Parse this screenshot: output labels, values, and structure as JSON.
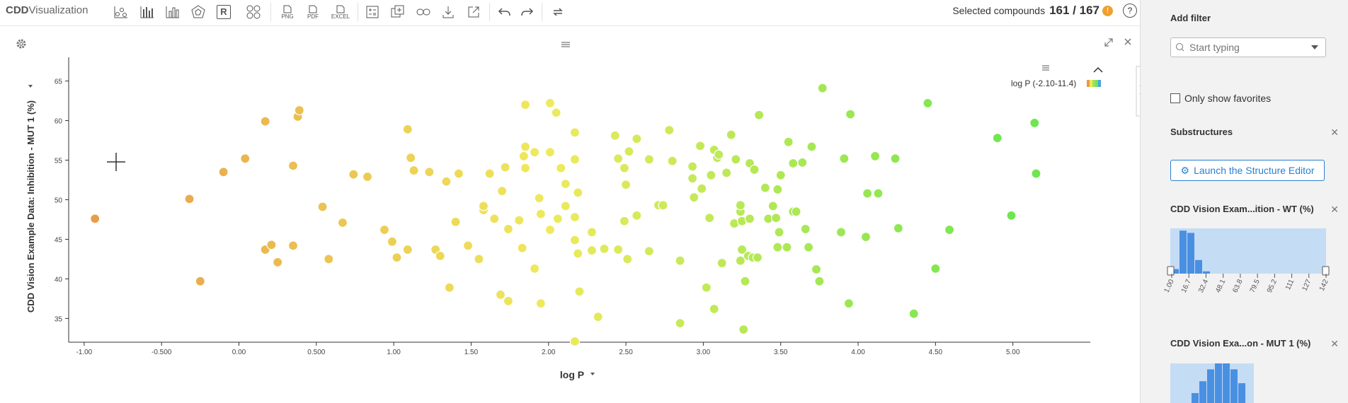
{
  "app": {
    "logo_main": "CDD",
    "logo_sub": "Visualization"
  },
  "toolbar": {
    "icons": [
      "scatter-plot-icon",
      "histogram-icon",
      "bar-chart-icon",
      "radar-chart-icon",
      "r-script-icon",
      "cluster-icon",
      "png-export-icon",
      "pdf-export-icon",
      "excel-export-icon",
      "calculator-icon",
      "duplicate-icon",
      "link-icon",
      "download-icon",
      "open-external-icon",
      "undo-icon",
      "redo-icon",
      "refresh-icon"
    ],
    "r_label": "R",
    "png_label": "PNG",
    "pdf_label": "PDF",
    "excel_label": "EXCEL"
  },
  "selection": {
    "label": "Selected compounds",
    "count": "161 / 167",
    "warn": "!",
    "help": "?"
  },
  "legend": {
    "label": "log P (-2.10-11.4)"
  },
  "chart_data": {
    "type": "scatter",
    "xlabel": "log P",
    "ylabel": "CDD Vision Example Data: Inhibition - MUT 1 (%)",
    "xlim": [
      -1.1,
      5.5
    ],
    "ylim": [
      32,
      68
    ],
    "x_ticks": [
      "-1.00",
      "-0.500",
      "0.00",
      "0.500",
      "1.00",
      "1.50",
      "2.00",
      "2.50",
      "3.00",
      "3.50",
      "4.00",
      "4.50",
      "5.00"
    ],
    "x_tick_values": [
      -1,
      -0.5,
      0,
      0.5,
      1,
      1.5,
      2,
      2.5,
      3,
      3.5,
      4,
      4.5,
      5
    ],
    "y_ticks": [
      "35",
      "40",
      "45",
      "50",
      "55",
      "60",
      "65"
    ],
    "y_tick_values": [
      35,
      40,
      45,
      50,
      55,
      60,
      65
    ],
    "color_scale": {
      "min": -2.1,
      "max": 11.4,
      "low": "#e89a48",
      "mid": "#eeea5c",
      "high": "#6ee64e"
    },
    "points": [
      [
        -0.93,
        47.6
      ],
      [
        -0.32,
        50.1
      ],
      [
        -0.25,
        39.7
      ],
      [
        -0.1,
        53.5
      ],
      [
        0.04,
        55.2
      ],
      [
        0.17,
        59.9
      ],
      [
        0.17,
        43.7
      ],
      [
        0.21,
        44.3
      ],
      [
        0.25,
        42.1
      ],
      [
        0.35,
        54.3
      ],
      [
        0.35,
        44.2
      ],
      [
        0.38,
        60.5
      ],
      [
        0.39,
        61.3
      ],
      [
        0.54,
        49.1
      ],
      [
        0.58,
        42.5
      ],
      [
        0.67,
        47.1
      ],
      [
        0.74,
        53.2
      ],
      [
        0.83,
        52.9
      ],
      [
        0.94,
        46.2
      ],
      [
        0.99,
        44.7
      ],
      [
        1.02,
        42.7
      ],
      [
        1.09,
        43.7
      ],
      [
        1.09,
        58.9
      ],
      [
        1.11,
        55.3
      ],
      [
        1.13,
        53.7
      ],
      [
        1.23,
        53.5
      ],
      [
        1.27,
        43.7
      ],
      [
        1.3,
        42.9
      ],
      [
        1.34,
        52.3
      ],
      [
        1.36,
        38.9
      ],
      [
        1.4,
        47.2
      ],
      [
        1.42,
        53.3
      ],
      [
        1.48,
        44.2
      ],
      [
        1.55,
        42.5
      ],
      [
        1.58,
        48.7
      ],
      [
        1.58,
        49.2
      ],
      [
        1.62,
        53.3
      ],
      [
        1.65,
        47.6
      ],
      [
        1.69,
        38.0
      ],
      [
        1.7,
        51.1
      ],
      [
        1.72,
        54.1
      ],
      [
        1.74,
        46.3
      ],
      [
        1.74,
        37.2
      ],
      [
        1.81,
        47.4
      ],
      [
        1.83,
        43.9
      ],
      [
        1.84,
        55.5
      ],
      [
        1.85,
        54.0
      ],
      [
        1.85,
        56.7
      ],
      [
        1.85,
        62.0
      ],
      [
        1.91,
        56.0
      ],
      [
        1.91,
        41.3
      ],
      [
        1.94,
        50.2
      ],
      [
        1.95,
        48.2
      ],
      [
        1.95,
        36.9
      ],
      [
        2.01,
        56.0
      ],
      [
        2.01,
        46.2
      ],
      [
        2.01,
        62.2
      ],
      [
        2.05,
        61.0
      ],
      [
        2.06,
        47.6
      ],
      [
        2.08,
        54.0
      ],
      [
        2.11,
        49.2
      ],
      [
        2.11,
        52.0
      ],
      [
        2.17,
        47.8
      ],
      [
        2.17,
        55.1
      ],
      [
        2.17,
        58.5
      ],
      [
        2.17,
        44.9
      ],
      [
        2.19,
        43.2
      ],
      [
        2.19,
        50.9
      ],
      [
        2.2,
        38.4
      ],
      [
        2.28,
        45.9
      ],
      [
        2.28,
        43.6
      ],
      [
        2.32,
        35.2
      ],
      [
        2.36,
        43.8
      ],
      [
        2.43,
        58.1
      ],
      [
        2.45,
        55.2
      ],
      [
        2.45,
        43.7
      ],
      [
        2.49,
        54.0
      ],
      [
        2.49,
        47.3
      ],
      [
        2.5,
        51.9
      ],
      [
        2.51,
        42.5
      ],
      [
        2.52,
        56.1
      ],
      [
        2.57,
        48.0
      ],
      [
        2.57,
        57.7
      ],
      [
        2.65,
        55.1
      ],
      [
        2.65,
        43.5
      ],
      [
        2.71,
        49.3
      ],
      [
        2.74,
        49.3
      ],
      [
        2.78,
        58.8
      ],
      [
        2.8,
        54.9
      ],
      [
        2.85,
        34.4
      ],
      [
        2.85,
        42.3
      ],
      [
        2.93,
        54.2
      ],
      [
        2.93,
        52.7
      ],
      [
        2.94,
        50.3
      ],
      [
        2.98,
        56.8
      ],
      [
        2.99,
        51.4
      ],
      [
        3.02,
        38.9
      ],
      [
        3.04,
        47.7
      ],
      [
        3.05,
        53.1
      ],
      [
        3.07,
        56.3
      ],
      [
        3.07,
        36.2
      ],
      [
        3.09,
        55.3
      ],
      [
        3.1,
        55.7
      ],
      [
        3.12,
        42.0
      ],
      [
        3.15,
        53.4
      ],
      [
        3.18,
        58.2
      ],
      [
        3.2,
        47.0
      ],
      [
        3.21,
        55.1
      ],
      [
        3.24,
        48.5
      ],
      [
        3.24,
        49.3
      ],
      [
        3.24,
        42.3
      ],
      [
        3.25,
        43.7
      ],
      [
        3.25,
        47.3
      ],
      [
        3.26,
        33.6
      ],
      [
        3.27,
        39.7
      ],
      [
        3.29,
        42.9
      ],
      [
        3.3,
        54.6
      ],
      [
        3.3,
        47.6
      ],
      [
        3.32,
        42.7
      ],
      [
        3.33,
        53.8
      ],
      [
        3.35,
        42.7
      ],
      [
        3.36,
        60.7
      ],
      [
        3.4,
        51.5
      ],
      [
        3.42,
        47.6
      ],
      [
        3.45,
        49.2
      ],
      [
        3.47,
        47.7
      ],
      [
        3.48,
        51.3
      ],
      [
        3.48,
        44.0
      ],
      [
        3.49,
        45.9
      ],
      [
        3.5,
        53.1
      ],
      [
        3.54,
        44.0
      ],
      [
        3.55,
        57.3
      ],
      [
        3.58,
        54.6
      ],
      [
        3.58,
        48.5
      ],
      [
        3.6,
        48.5
      ],
      [
        3.64,
        54.7
      ],
      [
        3.66,
        46.3
      ],
      [
        3.68,
        44.0
      ],
      [
        3.7,
        56.7
      ],
      [
        3.73,
        41.2
      ],
      [
        3.75,
        39.7
      ],
      [
        3.77,
        64.1
      ],
      [
        3.89,
        45.9
      ],
      [
        3.91,
        55.2
      ],
      [
        3.94,
        36.9
      ],
      [
        3.95,
        60.8
      ],
      [
        4.05,
        45.3
      ],
      [
        4.06,
        50.8
      ],
      [
        4.11,
        55.5
      ],
      [
        4.13,
        50.8
      ],
      [
        4.24,
        55.2
      ],
      [
        4.26,
        46.4
      ],
      [
        4.36,
        35.6
      ],
      [
        4.45,
        62.2
      ],
      [
        4.5,
        41.3
      ],
      [
        4.59,
        46.2
      ],
      [
        4.9,
        57.8
      ],
      [
        4.99,
        48.0
      ],
      [
        5.14,
        59.7
      ],
      [
        5.15,
        53.3
      ],
      [
        2.17,
        32.1
      ]
    ]
  }
}
